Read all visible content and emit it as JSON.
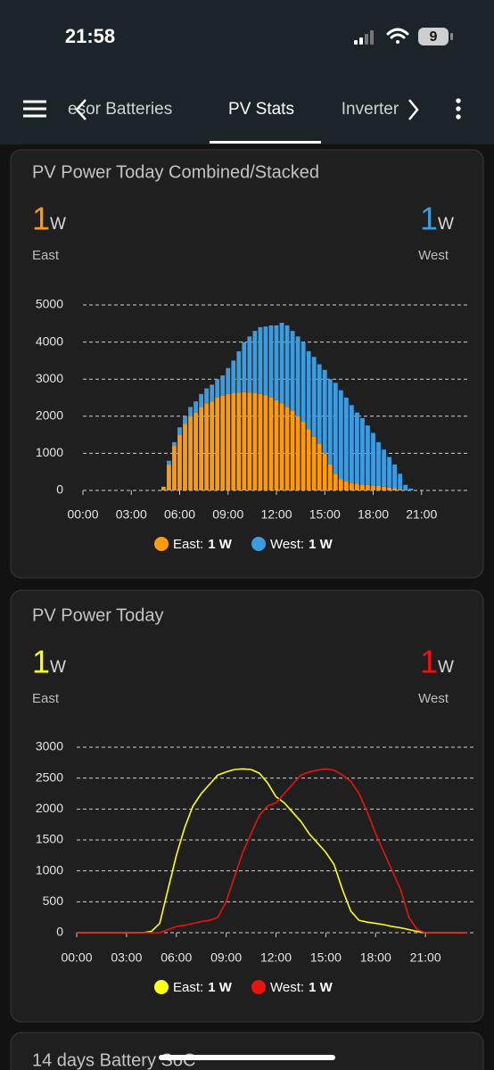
{
  "status_bar": {
    "time": "21:58",
    "battery": "9"
  },
  "tabs": [
    "esor Batteries",
    "PV Stats",
    "Inverter"
  ],
  "cards": [
    {
      "title": "PV Power Today Combined/Stacked",
      "stats": [
        {
          "value": 1,
          "unit": "W",
          "label": "East",
          "color": "#ff9a0f"
        },
        {
          "value": 1,
          "unit": "W",
          "label": "West",
          "color": "#3d9be0"
        }
      ],
      "chart": {
        "type": "bar",
        "stacked": true,
        "x": [
          300,
          320,
          340,
          360,
          380,
          400,
          420,
          440,
          460,
          480,
          500,
          520,
          540,
          560,
          580,
          600,
          620,
          640,
          660,
          680,
          700,
          720,
          740,
          760,
          780,
          800,
          820,
          840,
          860,
          880,
          900,
          920,
          940,
          960,
          980,
          1000,
          1020,
          1040,
          1060,
          1080,
          1100,
          1120,
          1140,
          1160,
          1180,
          1200,
          1220,
          1240,
          1260
        ],
        "series": [
          {
            "name": "East:",
            "legend_value": "1 W",
            "color": "#ff9a0f",
            "values": [
              100,
              700,
              1200,
              1500,
              1800,
              2000,
              2100,
              2250,
              2350,
              2400,
              2500,
              2550,
              2600,
              2620,
              2640,
              2650,
              2640,
              2630,
              2600,
              2560,
              2500,
              2430,
              2350,
              2250,
              2150,
              2000,
              1850,
              1650,
              1450,
              1250,
              1000,
              700,
              450,
              300,
              250,
              200,
              180,
              160,
              150,
              130,
              120,
              100,
              80,
              60,
              40,
              20,
              10,
              0,
              0
            ]
          },
          {
            "name": "West:",
            "legend_value": "1 W",
            "color": "#3d9be0",
            "values": [
              0,
              100,
              100,
              200,
              200,
              250,
              300,
              350,
              400,
              450,
              500,
              550,
              700,
              880,
              1110,
              1350,
              1510,
              1670,
              1800,
              1860,
              1950,
              2020,
              2170,
              2200,
              2150,
              2150,
              2150,
              2100,
              2150,
              2150,
              2250,
              2300,
              2450,
              2400,
              2250,
              2100,
              1920,
              1790,
              1600,
              1420,
              1180,
              1000,
              820,
              640,
              410,
              130,
              40,
              0,
              0
            ]
          }
        ],
        "xlim": [
          0,
          1440
        ],
        "xticks": [
          {
            "value": 0,
            "label": "00:00"
          },
          {
            "value": 180,
            "label": "03:00"
          },
          {
            "value": 360,
            "label": "06:00"
          },
          {
            "value": 540,
            "label": "09:00"
          },
          {
            "value": 720,
            "label": "12:00"
          },
          {
            "value": 900,
            "label": "15:00"
          },
          {
            "value": 1080,
            "label": "18:00"
          },
          {
            "value": 1260,
            "label": "21:00"
          }
        ],
        "ylim": [
          0,
          5000
        ],
        "yticks": [
          0,
          1000,
          2000,
          3000,
          4000,
          5000
        ],
        "grid": true
      }
    },
    {
      "title": "PV Power Today",
      "stats": [
        {
          "value": 1,
          "unit": "W",
          "label": "East",
          "color": "#ffff1a"
        },
        {
          "value": 1,
          "unit": "W",
          "label": "West",
          "color": "#e8140d"
        }
      ],
      "chart": {
        "type": "line",
        "x": [
          0,
          30,
          60,
          90,
          120,
          150,
          180,
          210,
          240,
          270,
          300,
          330,
          360,
          390,
          420,
          450,
          480,
          510,
          540,
          570,
          600,
          630,
          660,
          690,
          720,
          750,
          780,
          810,
          840,
          870,
          900,
          930,
          960,
          990,
          1020,
          1050,
          1080,
          1110,
          1140,
          1170,
          1200,
          1230,
          1260,
          1290,
          1320,
          1350,
          1380,
          1410
        ],
        "series": [
          {
            "name": "East:",
            "legend_value": "1 W",
            "color": "#ffff1a",
            "values": [
              0,
              0,
              0,
              0,
              0,
              0,
              0,
              0,
              0,
              20,
              150,
              700,
              1250,
              1700,
              2050,
              2250,
              2400,
              2550,
              2600,
              2640,
              2650,
              2640,
              2580,
              2420,
              2200,
              2100,
              1950,
              1800,
              1600,
              1450,
              1300,
              1100,
              700,
              350,
              200,
              170,
              150,
              130,
              100,
              80,
              50,
              20,
              0,
              0,
              0,
              0,
              0,
              0
            ]
          },
          {
            "name": "West:",
            "legend_value": "1 W",
            "color": "#e8140d",
            "values": [
              0,
              0,
              0,
              0,
              0,
              0,
              0,
              0,
              0,
              0,
              0,
              50,
              100,
              120,
              150,
              180,
              200,
              250,
              500,
              900,
              1300,
              1600,
              1900,
              2050,
              2100,
              2250,
              2400,
              2550,
              2600,
              2630,
              2650,
              2630,
              2550,
              2450,
              2250,
              1950,
              1600,
              1300,
              1000,
              700,
              250,
              50,
              0,
              0,
              0,
              0,
              0,
              0
            ]
          }
        ],
        "xlim": [
          0,
          1440
        ],
        "xticks": [
          {
            "value": 0,
            "label": "00:00"
          },
          {
            "value": 180,
            "label": "03:00"
          },
          {
            "value": 360,
            "label": "06:00"
          },
          {
            "value": 540,
            "label": "09:00"
          },
          {
            "value": 720,
            "label": "12:00"
          },
          {
            "value": 900,
            "label": "15:00"
          },
          {
            "value": 1080,
            "label": "18:00"
          },
          {
            "value": 1260,
            "label": "21:00"
          }
        ],
        "ylim": [
          0,
          3000
        ],
        "yticks": [
          0,
          500,
          1000,
          1500,
          2000,
          2500,
          3000
        ],
        "grid": true
      }
    },
    {
      "title": "14 days Battery SoC"
    }
  ]
}
